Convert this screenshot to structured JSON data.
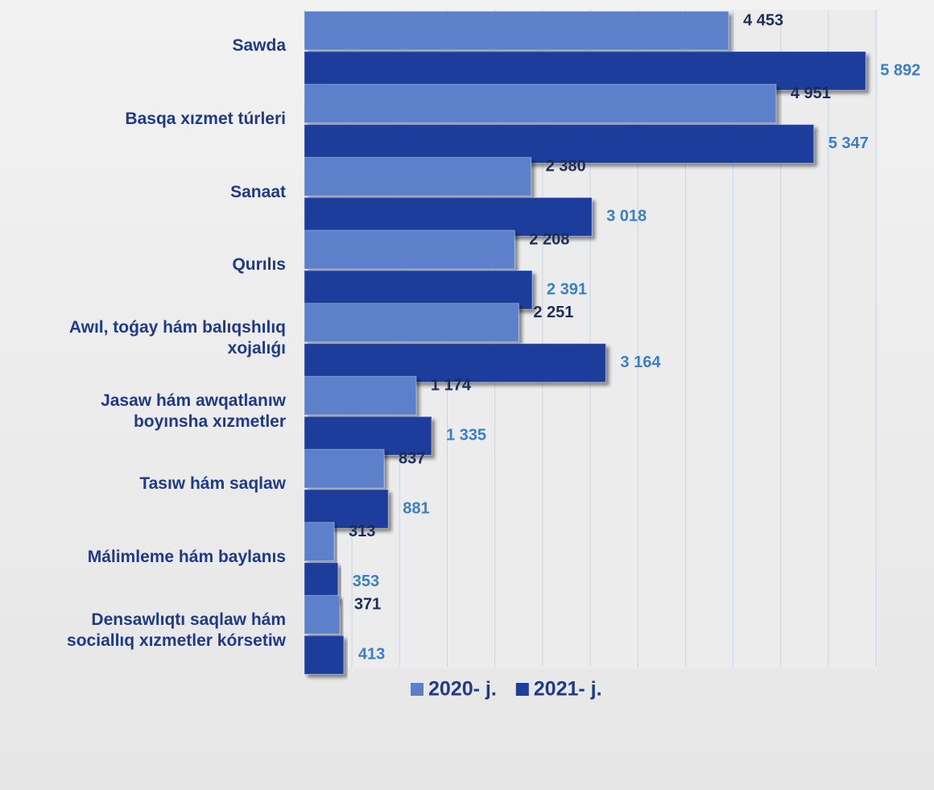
{
  "chart_data": {
    "type": "barh",
    "categories": [
      "Sawda",
      "Basqa xızmet túrleri",
      "Sanaat",
      "Qurılıs",
      "Awıl, toǵay hám balıqshılıq\nxojalıǵı",
      "Jasaw hám awqatlanıw\nboyınsha xızmetler",
      "Tasıw hám saqlaw",
      "Málimleme hám baylanıs",
      "Densawlıqtı saqlaw hám\nsociallıq xızmetler kórsetiw"
    ],
    "series": [
      {
        "name": "2020- j.",
        "color": "#5b80c9",
        "label_color": "#1b2d5c",
        "values": [
          4453,
          4951,
          2380,
          2208,
          2251,
          1174,
          837,
          313,
          371
        ],
        "value_labels": [
          "4 453",
          "4 951",
          "2 380",
          "2 208",
          "2 251",
          "1 174",
          "837",
          "313",
          "371"
        ]
      },
      {
        "name": "2021- j.",
        "color": "#1f3d9c",
        "label_color": "#3b7fc4",
        "values": [
          5892,
          5347,
          3018,
          2391,
          3164,
          1335,
          881,
          353,
          413
        ],
        "value_labels": [
          "5 892",
          "5 347",
          "3 018",
          "2 391",
          "3 164",
          "1 335",
          "881",
          "353",
          "413"
        ]
      }
    ],
    "xlim": [
      0,
      6000
    ],
    "xticks": [
      0,
      500,
      1000,
      1500,
      2000,
      2500,
      3000,
      3500,
      4000,
      4500,
      5000,
      5500,
      6000
    ],
    "grid": true
  }
}
